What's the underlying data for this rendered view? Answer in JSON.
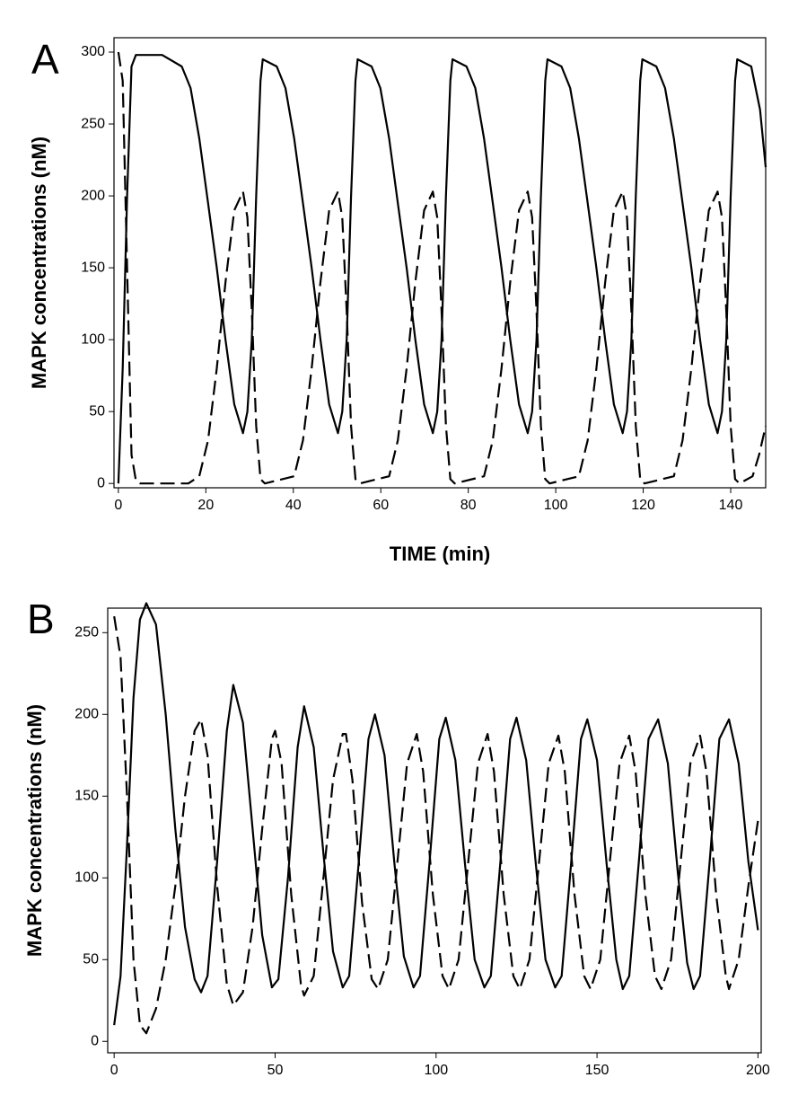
{
  "chart_data": [
    {
      "type": "line",
      "panel_label": "A",
      "ylabel": "MAPK concentrations (nM)",
      "xlabel": "TIME (min)",
      "xlim": [
        -1,
        148
      ],
      "ylim": [
        -3,
        310
      ],
      "xticks": [
        0,
        20,
        40,
        60,
        80,
        100,
        120,
        140
      ],
      "yticks": [
        0,
        50,
        100,
        150,
        200,
        250,
        300
      ],
      "series": [
        {
          "color": "#000000",
          "dash": "solid",
          "x": [
            0,
            1,
            2,
            3,
            4,
            10,
            14.5,
            16.5,
            18.5,
            20.5,
            22.5,
            24.5,
            26.5,
            28.5,
            29.5,
            30.5,
            31.5,
            32.5,
            33,
            36.2,
            38.2,
            40.2,
            42.2,
            44.2,
            46.2,
            48.2,
            50.2,
            51.2,
            52.2,
            53.2,
            54.2,
            54.7,
            57.9,
            59.9,
            61.9,
            63.9,
            65.9,
            67.9,
            69.9,
            71.9,
            72.9,
            73.9,
            74.9,
            75.9,
            76.4,
            79.6,
            81.6,
            83.6,
            85.6,
            87.6,
            89.6,
            91.6,
            93.6,
            94.6,
            95.6,
            96.6,
            97.6,
            98.1,
            101.3,
            103.3,
            105.3,
            107.3,
            109.3,
            111.3,
            113.3,
            115.3,
            116.3,
            117.3,
            118.3,
            119.3,
            119.8,
            123,
            125,
            127,
            129,
            131,
            133,
            135,
            137,
            138,
            139,
            140,
            141,
            141.5,
            144.7,
            146.7,
            148
          ],
          "values": [
            0,
            80,
            200,
            290,
            298,
            298,
            290,
            275,
            240,
            195,
            150,
            100,
            55,
            35,
            50,
            100,
            200,
            280,
            295,
            290,
            275,
            240,
            195,
            150,
            100,
            55,
            35,
            50,
            100,
            200,
            280,
            295,
            290,
            275,
            240,
            195,
            150,
            100,
            55,
            35,
            50,
            100,
            200,
            280,
            295,
            290,
            275,
            240,
            195,
            150,
            100,
            55,
            35,
            50,
            100,
            200,
            280,
            295,
            290,
            275,
            240,
            195,
            150,
            100,
            55,
            35,
            50,
            100,
            200,
            280,
            295,
            290,
            275,
            240,
            195,
            150,
            100,
            55,
            35,
            50,
            100,
            200,
            280,
            295,
            290,
            260,
            220
          ]
        },
        {
          "color": "#000000",
          "dash": "dashed",
          "x": [
            0,
            1,
            2,
            3,
            4,
            5,
            16,
            18.5,
            20.5,
            22.5,
            24.5,
            26.5,
            28.5,
            29.5,
            30.5,
            31.5,
            32.5,
            33.5,
            40.2,
            42.2,
            44.2,
            46.2,
            48.2,
            50.2,
            51.2,
            52.2,
            53.2,
            54.2,
            55.2,
            61.9,
            63.9,
            65.9,
            67.9,
            69.9,
            71.9,
            72.9,
            73.9,
            74.9,
            75.9,
            76.9,
            83.6,
            85.6,
            87.6,
            89.6,
            91.6,
            93.6,
            94.6,
            95.6,
            96.6,
            97.6,
            98.6,
            105.3,
            107.3,
            109.3,
            111.3,
            113.3,
            115.3,
            116.3,
            117.3,
            118.3,
            119.3,
            120.3,
            127,
            129,
            131,
            133,
            135,
            137,
            138,
            139,
            140,
            141,
            142,
            145,
            146.5,
            148
          ],
          "values": [
            300,
            280,
            150,
            20,
            2,
            0,
            0,
            5,
            30,
            80,
            140,
            190,
            203,
            185,
            120,
            40,
            3,
            0,
            5,
            30,
            80,
            140,
            190,
            203,
            185,
            120,
            40,
            3,
            0,
            5,
            30,
            80,
            140,
            190,
            203,
            185,
            120,
            40,
            3,
            0,
            5,
            30,
            80,
            140,
            190,
            203,
            185,
            120,
            40,
            3,
            0,
            5,
            30,
            80,
            140,
            190,
            203,
            185,
            120,
            40,
            3,
            0,
            5,
            30,
            80,
            140,
            190,
            203,
            185,
            120,
            40,
            3,
            0,
            5,
            20,
            40
          ]
        }
      ]
    },
    {
      "type": "line",
      "panel_label": "B",
      "ylabel": "MAPK concentrations (nM)",
      "xlim": [
        -2,
        201
      ],
      "ylim": [
        -7,
        265
      ],
      "xticks": [
        0,
        50,
        100,
        150,
        200
      ],
      "yticks": [
        0,
        50,
        100,
        150,
        200,
        250
      ],
      "series": [
        {
          "color": "#000000",
          "dash": "solid",
          "x": [
            0,
            2,
            4,
            6,
            8,
            10,
            13,
            16,
            19,
            22,
            25,
            27,
            29,
            32,
            35,
            37,
            40,
            43,
            46,
            49,
            51,
            54,
            57,
            59,
            62,
            65,
            68,
            71,
            73,
            76,
            79,
            81,
            84,
            87,
            90,
            93,
            95,
            98,
            101,
            103,
            106,
            109,
            112,
            115,
            117,
            120,
            123,
            125,
            128,
            131,
            134,
            137,
            139,
            142,
            145,
            147,
            150,
            153,
            156,
            158,
            160,
            163,
            166,
            169,
            172,
            175,
            178,
            180,
            182,
            185,
            188,
            191,
            194,
            197,
            200
          ],
          "values": [
            10,
            40,
            120,
            210,
            258,
            268,
            255,
            200,
            130,
            70,
            38,
            30,
            40,
            110,
            190,
            218,
            195,
            130,
            65,
            33,
            38,
            100,
            180,
            205,
            180,
            115,
            55,
            33,
            40,
            110,
            185,
            200,
            175,
            110,
            52,
            33,
            40,
            110,
            185,
            198,
            172,
            108,
            50,
            33,
            40,
            110,
            185,
            198,
            172,
            108,
            50,
            33,
            40,
            110,
            185,
            197,
            172,
            108,
            50,
            32,
            40,
            110,
            185,
            197,
            170,
            105,
            48,
            32,
            40,
            110,
            185,
            197,
            170,
            110,
            68
          ]
        },
        {
          "color": "#000000",
          "dash": "dashed",
          "x": [
            0,
            2,
            4,
            6,
            8,
            10,
            13,
            16,
            19,
            22,
            25,
            27,
            29,
            32,
            35,
            37,
            40,
            43,
            46,
            49,
            50,
            52,
            55,
            58,
            59,
            62,
            65,
            68,
            71,
            72,
            74,
            77,
            80,
            82,
            85,
            88,
            91,
            94,
            96,
            99,
            102,
            104,
            107,
            110,
            113,
            116,
            118,
            121,
            124,
            126,
            129,
            132,
            135,
            138,
            140,
            143,
            146,
            148,
            151,
            154,
            157,
            160,
            162,
            165,
            168,
            170,
            173,
            176,
            179,
            182,
            184,
            187,
            190,
            191,
            194,
            197,
            200
          ],
          "values": [
            260,
            235,
            150,
            50,
            10,
            5,
            20,
            50,
            95,
            150,
            190,
            197,
            175,
            95,
            35,
            22,
            30,
            70,
            130,
            185,
            190,
            170,
            90,
            35,
            28,
            40,
            100,
            160,
            188,
            188,
            160,
            85,
            38,
            32,
            50,
            110,
            170,
            188,
            165,
            90,
            40,
            32,
            50,
            110,
            170,
            188,
            165,
            90,
            40,
            32,
            50,
            110,
            170,
            187,
            165,
            90,
            40,
            32,
            50,
            110,
            170,
            187,
            165,
            90,
            40,
            32,
            50,
            110,
            170,
            187,
            165,
            90,
            40,
            32,
            50,
            95,
            135
          ]
        }
      ]
    }
  ]
}
